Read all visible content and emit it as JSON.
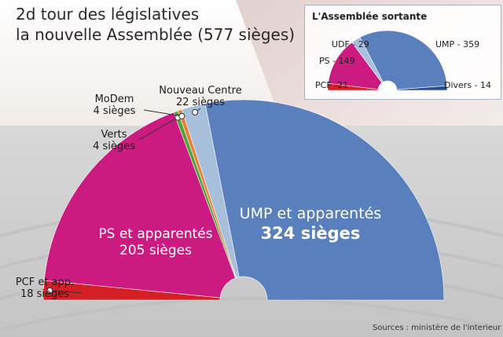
{
  "title_line1": "2d tour des législatives",
  "title_line2": "la nouvelle Assemblée (577 sièges)",
  "source": "Sources : ministère de l'interieur",
  "main_labels": {
    "pcf_name": "PCF et app.",
    "pcf_seats": "18 sièges",
    "ps_name": "PS et apparentés",
    "ps_seats": "205 sièges",
    "verts_name": "Verts",
    "verts_seats": "4 sièges",
    "modem_name": "MoDem",
    "modem_seats": "4 sièges",
    "nc_name": "Nouveau Centre",
    "nc_seats": "22 sièges",
    "ump_name": "UMP et apparentés",
    "ump_seats": "324 sièges"
  },
  "inset_labels": {
    "title": "L'Assemblée sortante",
    "udf": "UDF - 29",
    "ump": "UMP - 359",
    "ps": "PS - 149",
    "pcf": "PCF -21",
    "divers": "Divers - 14"
  },
  "colors": {
    "PCF": "#d51f26",
    "PS": "#cc1b80",
    "Verts": "#4aa63c",
    "MoDem": "#e8823a",
    "NouveauCentre": "#a8bfdc",
    "UMP": "#5a7fbd",
    "UDF": "#a8bfdc",
    "Divers": "#2e4f8f"
  },
  "chart_data": [
    {
      "type": "pie",
      "chart_kind": "hemicycle",
      "title": "la nouvelle Assemblée (577 sièges)",
      "total": 577,
      "slices": [
        {
          "label": "PCF et app.",
          "value": 18,
          "color": "#d51f26"
        },
        {
          "label": "PS et apparentés",
          "value": 205,
          "color": "#cc1b80"
        },
        {
          "label": "Verts",
          "value": 4,
          "color": "#4aa63c"
        },
        {
          "label": "MoDem",
          "value": 4,
          "color": "#e8823a"
        },
        {
          "label": "Nouveau Centre",
          "value": 22,
          "color": "#a8bfdc"
        },
        {
          "label": "UMP et apparentés",
          "value": 324,
          "color": "#5a7fbd"
        }
      ]
    },
    {
      "type": "pie",
      "chart_kind": "hemicycle",
      "title": "L'Assemblée sortante",
      "slices": [
        {
          "label": "PCF",
          "value": 21,
          "color": "#d51f26"
        },
        {
          "label": "PS",
          "value": 149,
          "color": "#cc1b80"
        },
        {
          "label": "UDF",
          "value": 29,
          "color": "#a8bfdc"
        },
        {
          "label": "UMP",
          "value": 359,
          "color": "#5a7fbd"
        },
        {
          "label": "Divers",
          "value": 14,
          "color": "#2e4f8f"
        }
      ]
    }
  ]
}
